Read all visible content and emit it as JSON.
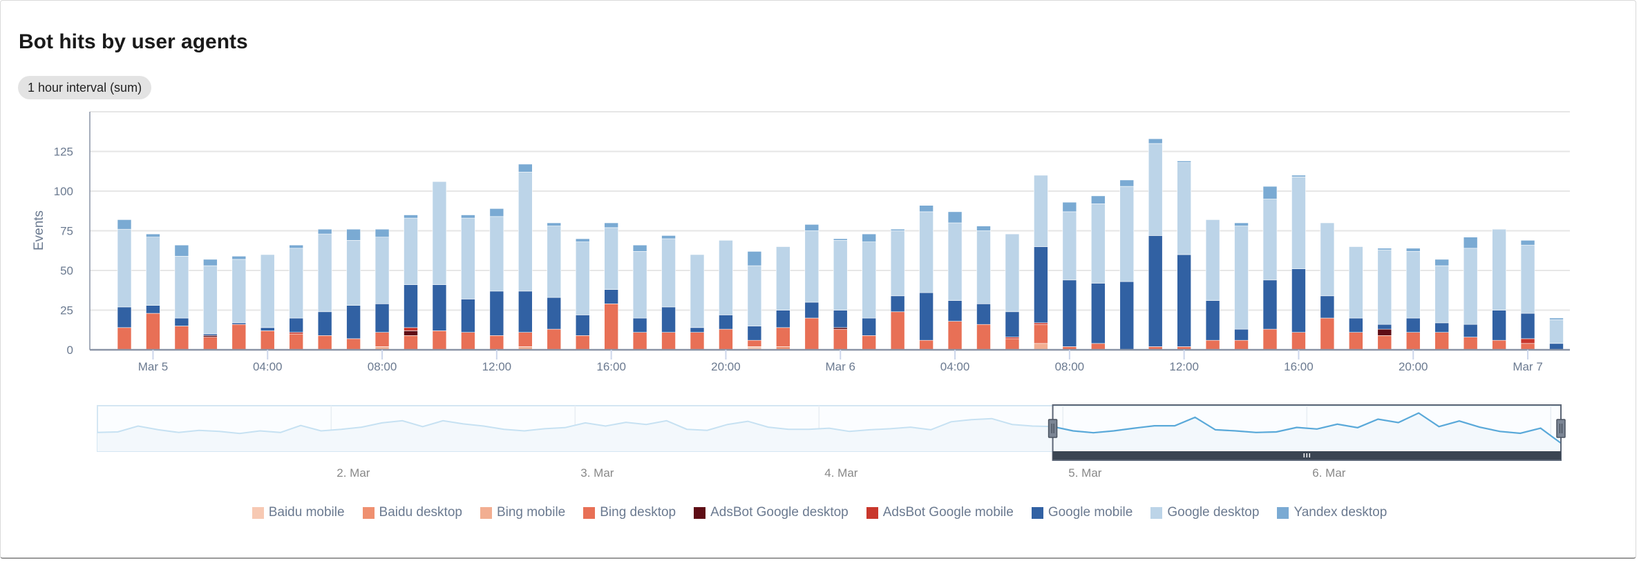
{
  "title": "Bot hits by user agents",
  "interval_label": "1 hour interval (sum)",
  "chart_data": {
    "type": "bar",
    "stacked": true,
    "title": "Bot hits by user agents",
    "xlabel": "",
    "ylabel": "Events",
    "ylim": [
      0,
      150
    ],
    "y_ticks": [
      "0",
      "25",
      "50",
      "75",
      "100",
      "125"
    ],
    "y_tick_values": [
      0,
      25,
      50,
      75,
      100,
      125
    ],
    "x_start": "Mar 4 23:00",
    "x_interval": "1 hour",
    "bar_count": 51,
    "x_ticks": [
      "Mar 5",
      "04:00",
      "08:00",
      "12:00",
      "16:00",
      "20:00",
      "Mar 6",
      "04:00",
      "08:00",
      "12:00",
      "16:00",
      "20:00",
      "Mar 7"
    ],
    "x_tick_indices": [
      1,
      5,
      9,
      13,
      17,
      21,
      25,
      29,
      33,
      37,
      41,
      45,
      49
    ],
    "legend_position": "bottom",
    "series": [
      {
        "name": "Baidu mobile",
        "color": "#f7c9b3",
        "values": [
          0,
          0,
          0,
          0,
          0,
          0,
          0,
          0,
          0,
          0,
          0,
          0,
          0,
          0,
          0,
          0,
          0,
          0,
          0,
          0,
          0,
          0,
          2,
          0,
          0,
          0,
          0,
          0,
          0,
          0,
          0,
          0,
          0,
          0,
          0,
          0,
          0,
          0,
          0,
          0,
          0,
          0,
          0,
          0,
          0,
          0,
          0,
          0,
          0,
          0,
          0
        ]
      },
      {
        "name": "Baidu desktop",
        "color": "#ef9070",
        "values": [
          0,
          0,
          0,
          0,
          0,
          0,
          0,
          0,
          0,
          0,
          0,
          0,
          0,
          0,
          0,
          0,
          0,
          0,
          0,
          0,
          0,
          0,
          0,
          2,
          0,
          0,
          0,
          0,
          0,
          0,
          0,
          0,
          0,
          0,
          0,
          0,
          0,
          0,
          0,
          0,
          0,
          0,
          0,
          0,
          0,
          0,
          0,
          0,
          0,
          0,
          0
        ]
      },
      {
        "name": "Bing mobile",
        "color": "#f2ae91",
        "values": [
          0,
          0,
          0,
          0,
          0,
          0,
          0,
          0,
          0,
          2,
          0,
          0,
          0,
          0,
          2,
          0,
          0,
          0,
          0,
          0,
          0,
          0,
          0,
          0,
          0,
          0,
          0,
          0,
          0,
          0,
          0,
          0,
          4,
          0,
          0,
          0,
          0,
          0,
          0,
          0,
          0,
          0,
          0,
          0,
          0,
          0,
          0,
          0,
          0,
          0,
          0
        ]
      },
      {
        "name": "Bing desktop",
        "color": "#e87056",
        "values": [
          14,
          23,
          15,
          8,
          16,
          12,
          10,
          9,
          7,
          9,
          9,
          12,
          11,
          9,
          9,
          13,
          9,
          29,
          11,
          11,
          11,
          13,
          4,
          12,
          20,
          13,
          9,
          24,
          6,
          18,
          16,
          7,
          12,
          2,
          4,
          0,
          2,
          2,
          6,
          6,
          13,
          11,
          20,
          11,
          9,
          11,
          11,
          8,
          6,
          4,
          0
        ]
      },
      {
        "name": "AdsBot Google desktop",
        "color": "#5e0d15",
        "values": [
          0,
          0,
          0,
          1,
          0,
          0,
          0,
          0,
          0,
          0,
          3,
          0,
          0,
          0,
          0,
          0,
          0,
          0,
          0,
          0,
          0,
          0,
          0,
          0,
          0,
          1,
          0,
          0,
          0,
          0,
          0,
          0,
          0,
          0,
          0,
          0,
          0,
          0,
          0,
          0,
          0,
          0,
          0,
          0,
          4,
          0,
          0,
          0,
          0,
          0,
          0
        ]
      },
      {
        "name": "AdsBot Google mobile",
        "color": "#c9372c",
        "values": [
          0,
          0,
          0,
          0,
          0,
          0,
          1,
          0,
          0,
          0,
          2,
          0,
          0,
          0,
          0,
          0,
          0,
          0,
          0,
          0,
          0,
          0,
          0,
          0,
          0,
          0,
          0,
          0,
          0,
          0,
          0,
          1,
          1,
          0,
          0,
          0,
          0,
          0,
          0,
          0,
          0,
          0,
          0,
          0,
          0,
          0,
          0,
          0,
          0,
          3,
          0
        ]
      },
      {
        "name": "Google mobile",
        "color": "#3161a3",
        "values": [
          13,
          5,
          5,
          1,
          1,
          2,
          9,
          15,
          21,
          18,
          27,
          29,
          21,
          28,
          26,
          20,
          13,
          9,
          9,
          16,
          3,
          9,
          9,
          11,
          10,
          11,
          11,
          10,
          30,
          13,
          13,
          16,
          48,
          42,
          38,
          43,
          70,
          58,
          25,
          7,
          31,
          40,
          14,
          9,
          3,
          9,
          6,
          8,
          19,
          16,
          4
        ]
      },
      {
        "name": "Google desktop",
        "color": "#bcd4e8",
        "values": [
          49,
          43,
          39,
          43,
          40,
          46,
          44,
          49,
          41,
          42,
          42,
          65,
          51,
          47,
          75,
          45,
          46,
          39,
          42,
          43,
          46,
          47,
          38,
          40,
          45,
          44,
          48,
          41,
          51,
          49,
          46,
          49,
          45,
          43,
          50,
          60,
          58,
          58,
          51,
          65,
          51,
          58,
          46,
          45,
          47,
          42,
          36,
          48,
          51,
          43,
          15
        ]
      },
      {
        "name": "Yandex desktop",
        "color": "#7aaad3",
        "values": [
          6,
          2,
          7,
          4,
          2,
          0,
          2,
          3,
          7,
          5,
          2,
          0,
          2,
          5,
          5,
          2,
          2,
          3,
          4,
          2,
          0,
          0,
          9,
          0,
          4,
          1,
          5,
          1,
          4,
          7,
          3,
          0,
          0,
          6,
          5,
          4,
          3,
          1,
          0,
          2,
          8,
          1,
          0,
          0,
          1,
          2,
          4,
          7,
          0,
          3,
          1
        ]
      }
    ]
  },
  "navigator": {
    "labels": [
      "2. Mar",
      "3. Mar",
      "4. Mar",
      "5. Mar",
      "6. Mar"
    ],
    "total_hours": 144,
    "label_hours": [
      23,
      47,
      71,
      95,
      119
    ],
    "grid_hours": [
      23,
      47,
      71,
      95,
      119,
      143
    ],
    "point_interval_hours": 2,
    "values": [
      60,
      62,
      84,
      70,
      60,
      68,
      64,
      56,
      66,
      60,
      86,
      66,
      72,
      80,
      96,
      104,
      82,
      104,
      92,
      84,
      72,
      66,
      74,
      78,
      96,
      84,
      98,
      90,
      104,
      72,
      68,
      90,
      102,
      80,
      72,
      72,
      76,
      64,
      70,
      74,
      80,
      70,
      100,
      108,
      112,
      90,
      84,
      82,
      66,
      59,
      66,
      76,
      85,
      85,
      117,
      70,
      66,
      60,
      62,
      79,
      73,
      91,
      78,
      110,
      97,
      133,
      82,
      103,
      80,
      64,
      57,
      76,
      20
    ],
    "selection_hours": [
      94,
      144
    ],
    "ylim": [
      0,
      150
    ],
    "line_color": "#5aa9d9",
    "line_color_outside": "#c6e1f2",
    "scrollbar_color": "#3b4552"
  }
}
